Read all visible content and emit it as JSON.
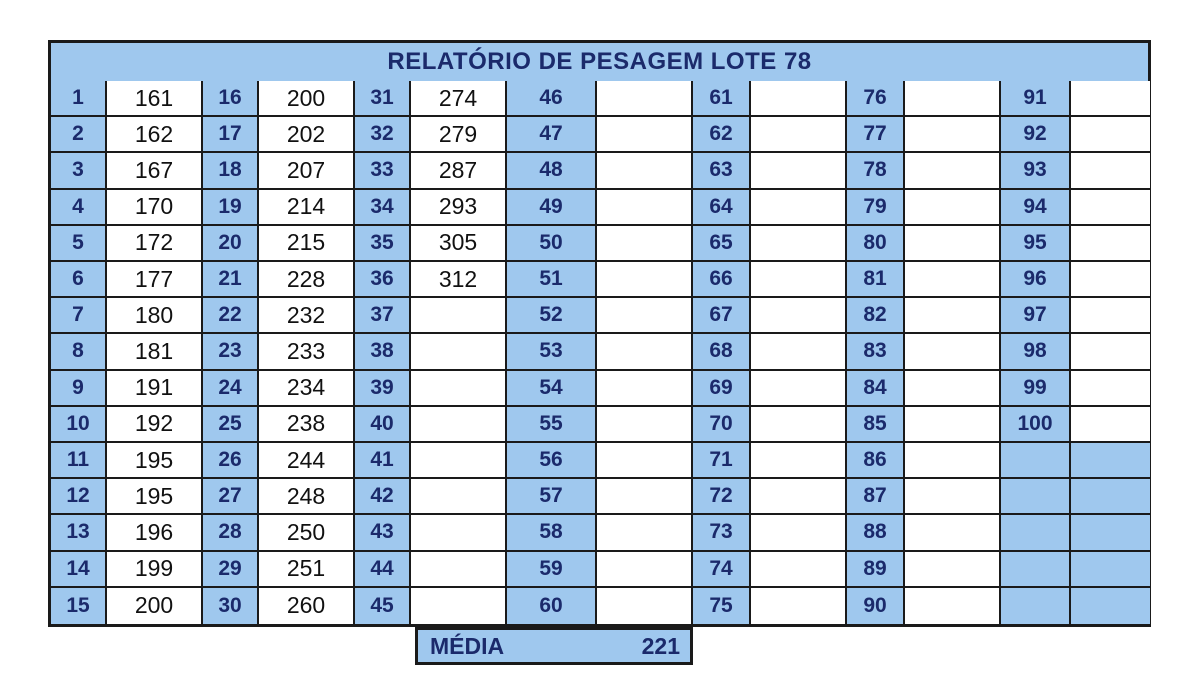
{
  "report": {
    "title": "RELATÓRIO DE PESAGEM LOTE  78"
  },
  "columns": [
    {
      "indices": [
        "1",
        "2",
        "3",
        "4",
        "5",
        "6",
        "7",
        "8",
        "9",
        "10",
        "11",
        "12",
        "13",
        "14",
        "15"
      ],
      "values": [
        "161",
        "162",
        "167",
        "170",
        "172",
        "177",
        "180",
        "181",
        "191",
        "192",
        "195",
        "195",
        "196",
        "199",
        "200"
      ]
    },
    {
      "indices": [
        "16",
        "17",
        "18",
        "19",
        "20",
        "21",
        "22",
        "23",
        "24",
        "25",
        "26",
        "27",
        "28",
        "29",
        "30"
      ],
      "values": [
        "200",
        "202",
        "207",
        "214",
        "215",
        "228",
        "232",
        "233",
        "234",
        "238",
        "244",
        "248",
        "250",
        "251",
        "260"
      ]
    },
    {
      "indices": [
        "31",
        "32",
        "33",
        "34",
        "35",
        "36",
        "37",
        "38",
        "39",
        "40",
        "41",
        "42",
        "43",
        "44",
        "45"
      ],
      "values": [
        "274",
        "279",
        "287",
        "293",
        "305",
        "312",
        "",
        "",
        "",
        "",
        "",
        "",
        "",
        "",
        ""
      ]
    },
    {
      "indices": [
        "46",
        "47",
        "48",
        "49",
        "50",
        "51",
        "52",
        "53",
        "54",
        "55",
        "56",
        "57",
        "58",
        "59",
        "60"
      ],
      "values": [
        "",
        "",
        "",
        "",
        "",
        "",
        "",
        "",
        "",
        "",
        "",
        "",
        "",
        "",
        ""
      ]
    },
    {
      "indices": [
        "61",
        "62",
        "63",
        "64",
        "65",
        "66",
        "67",
        "68",
        "69",
        "70",
        "71",
        "72",
        "73",
        "74",
        "75"
      ],
      "values": [
        "",
        "",
        "",
        "",
        "",
        "",
        "",
        "",
        "",
        "",
        "",
        "",
        "",
        "",
        ""
      ]
    },
    {
      "indices": [
        "76",
        "77",
        "78",
        "79",
        "80",
        "81",
        "82",
        "83",
        "84",
        "85",
        "86",
        "87",
        "88",
        "89",
        "90"
      ],
      "values": [
        "",
        "",
        "",
        "",
        "",
        "",
        "",
        "",
        "",
        "",
        "",
        "",
        "",
        "",
        ""
      ]
    },
    {
      "indices": [
        "91",
        "92",
        "93",
        "94",
        "95",
        "96",
        "97",
        "98",
        "99",
        "100",
        "",
        "",
        "",
        "",
        ""
      ],
      "values": [
        "",
        "",
        "",
        "",
        "",
        "",
        "",
        "",
        "",
        "",
        "",
        "",
        "",
        "",
        ""
      ]
    }
  ],
  "summary": {
    "label": "MÉDIA",
    "value": "221"
  },
  "colors": {
    "header_fill": "#9fc8ee",
    "header_text": "#1b2a6b",
    "border": "#1a1a1a"
  }
}
